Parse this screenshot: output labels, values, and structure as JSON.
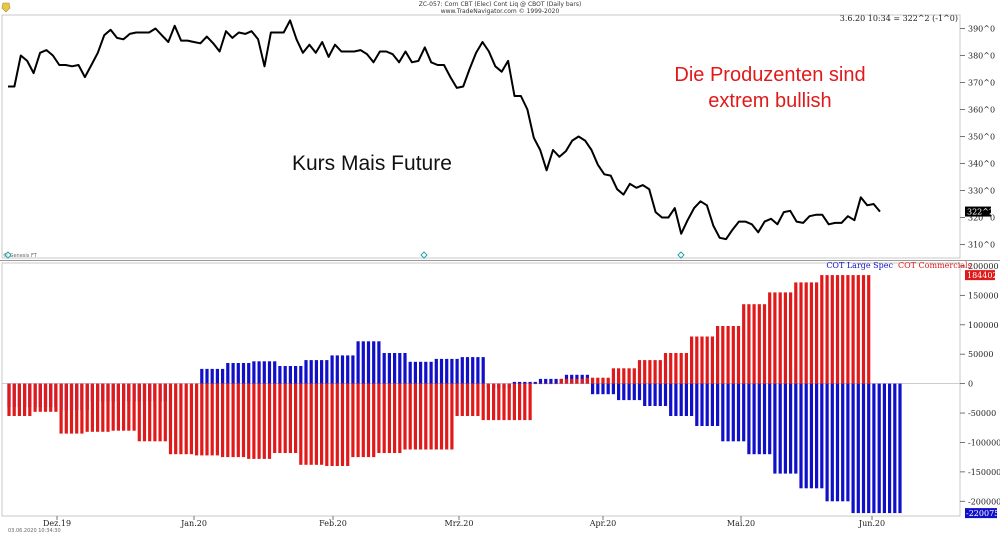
{
  "header": {
    "line1": "ZC-057: Corn CBT (Elec) Cont Liq @ CBOT  (Daily bars)",
    "line2": "www.TradeNavigator.com © 1999-2020"
  },
  "top_right_readout": "3.6.20 10:34 = 322^2 (-1^0)",
  "footer_timestamp": "03.06.2020 10:34:30",
  "watermark": "© Genesis FT",
  "chart_data": [
    {
      "type": "line",
      "annotation": "Kurs Mais Future",
      "annotation2": "Die Produzenten sind extrem bullish",
      "annotation2_lines": [
        "Die Produzenten sind",
        "extrem bullish"
      ],
      "annotation_colors": {
        "annotation": "#111111",
        "annotation2": "#e01a1a"
      },
      "ylim": [
        305,
        395
      ],
      "y_ticks": [
        310,
        320,
        330,
        340,
        350,
        360,
        370,
        380,
        390
      ],
      "y_tick_labels": [
        "310^0",
        "320^0",
        "330^0",
        "340^0",
        "350^0",
        "360^0",
        "370^0",
        "380^0",
        "390^0"
      ],
      "last_value_label": "322^2",
      "line_color": "#000000",
      "values": [
        368.5,
        368.5,
        380,
        378,
        373.5,
        381,
        382,
        380,
        376.5,
        376.5,
        376,
        376.5,
        372,
        376.5,
        381,
        387.5,
        389.5,
        386.5,
        386,
        388,
        388.5,
        388.5,
        388.5,
        390,
        387.5,
        385,
        391,
        385.5,
        385.5,
        385,
        384.5,
        387,
        384.5,
        381.5,
        389,
        386.5,
        388.5,
        388,
        389,
        386,
        376,
        388.5,
        388.5,
        388.5,
        393,
        386,
        381,
        384,
        381,
        385,
        379.5,
        384,
        381.5,
        381.5,
        381.5,
        382,
        380.5,
        377.5,
        381.5,
        381.5,
        380.5,
        377.5,
        381.5,
        377.5,
        378,
        383,
        377.5,
        376.5,
        376.5,
        372,
        368,
        368.5,
        375,
        381,
        385,
        381.5,
        376,
        374,
        378,
        365,
        365,
        360,
        349.5,
        345,
        337.5,
        345,
        342.5,
        344.5,
        348.5,
        350,
        348.5,
        345,
        339.5,
        336,
        335.5,
        330.5,
        328.5,
        332.5,
        331,
        332,
        330.5,
        322,
        320,
        320,
        323.5,
        314,
        319,
        323.5,
        326,
        324.5,
        317,
        312.5,
        312,
        315.5,
        318.5,
        318.5,
        317.5,
        314.5,
        318.5,
        319.5,
        317.5,
        322,
        322.5,
        318.5,
        318,
        320.5,
        321,
        321,
        317.5,
        318,
        318,
        320.5,
        319,
        327.5,
        324.5,
        325,
        322.2
      ]
    },
    {
      "type": "bar",
      "title": "",
      "ylim": [
        -225000,
        205000
      ],
      "y_ticks": [
        -200000,
        -150000,
        -100000,
        -50000,
        0,
        50000,
        100000,
        150000,
        200000
      ],
      "y_tick_labels": [
        "-200000",
        "-150000",
        "-100000",
        "-50000",
        "0",
        "50000",
        "100000",
        "150000",
        "200000"
      ],
      "legend_position": "top-right",
      "x_tick_labels": [
        "Dez.19",
        "Jan.20",
        "Feb.20",
        "Mrz.20",
        "Apr.20",
        "Mai.20",
        "Jun.20"
      ],
      "series": [
        {
          "name": "COT Large Spec",
          "color": "#1010c8",
          "last_value_label": "-220075",
          "values": [
            -40000,
            -40000,
            -40000,
            -40000,
            -40000,
            -40000,
            -40000,
            -40000,
            -40000,
            -40000,
            -45000,
            -45000,
            -45000,
            -45000,
            -45000,
            -45000,
            -30000,
            -30000,
            -30000,
            -30000,
            -30000,
            -30000,
            -30000,
            -30000,
            -30000,
            -30000,
            -30000,
            -30000,
            -30000,
            -30000,
            -30000,
            0,
            0,
            0,
            0,
            0,
            0,
            25000,
            25000,
            25000,
            25000,
            25000,
            35000,
            35000,
            35000,
            35000,
            35000,
            38000,
            38000,
            38000,
            38000,
            38000,
            30000,
            30000,
            30000,
            30000,
            30000,
            40000,
            40000,
            40000,
            40000,
            40000,
            48000,
            48000,
            48000,
            48000,
            48000,
            72000,
            72000,
            72000,
            72000,
            72000,
            52000,
            52000,
            52000,
            52000,
            52000,
            37000,
            37000,
            37000,
            37000,
            37000,
            42000,
            42000,
            42000,
            42000,
            42000,
            45000,
            45000,
            45000,
            45000,
            45000,
            -8000,
            -8000,
            -8000,
            -8000,
            -8000,
            3000,
            3000,
            3000,
            3000,
            3000,
            8000,
            8000,
            8000,
            8000,
            8000,
            15000,
            15000,
            15000,
            15000,
            15000,
            -18000,
            -18000,
            -18000,
            -18000,
            -18000,
            -28000,
            -28000,
            -28000,
            -28000,
            -28000,
            -38000,
            -38000,
            -38000,
            -38000,
            -38000,
            -55000,
            -55000,
            -55000,
            -55000,
            -55000,
            -72000,
            -72000,
            -72000,
            -72000,
            -72000,
            -98000,
            -98000,
            -98000,
            -98000,
            -98000,
            -120000,
            -120000,
            -120000,
            -120000,
            -120000,
            -153000,
            -153000,
            -153000,
            -153000,
            -153000,
            -178000,
            -178000,
            -178000,
            -178000,
            -178000,
            -200000,
            -200000,
            -200000,
            -200000,
            -200000,
            -220075,
            -220075,
            -220075,
            -220075,
            -220075,
            -220075,
            -220075,
            -220075,
            -220075,
            -220075
          ]
        },
        {
          "name": "COT Commercials",
          "color": "#e01a1a",
          "last_value_label": "184402",
          "values": [
            -55000,
            -55000,
            -55000,
            -55000,
            -55000,
            -48000,
            -48000,
            -48000,
            -48000,
            -48000,
            -85000,
            -85000,
            -85000,
            -85000,
            -85000,
            -82000,
            -82000,
            -82000,
            -82000,
            -82000,
            -80000,
            -80000,
            -80000,
            -80000,
            -80000,
            -98000,
            -98000,
            -98000,
            -98000,
            -98000,
            -98000,
            -120000,
            -120000,
            -120000,
            -120000,
            -120000,
            -122000,
            -122000,
            -122000,
            -122000,
            -122000,
            -125000,
            -125000,
            -125000,
            -125000,
            -125000,
            -128000,
            -128000,
            -128000,
            -128000,
            -128000,
            -118000,
            -118000,
            -118000,
            -118000,
            -118000,
            -138000,
            -138000,
            -138000,
            -138000,
            -138000,
            -140000,
            -140000,
            -140000,
            -140000,
            -140000,
            -125000,
            -125000,
            -125000,
            -125000,
            -125000,
            -118000,
            -118000,
            -118000,
            -118000,
            -118000,
            -112000,
            -112000,
            -112000,
            -112000,
            -112000,
            -112000,
            -112000,
            -112000,
            -112000,
            -112000,
            -55000,
            -55000,
            -55000,
            -55000,
            -55000,
            -62000,
            -62000,
            -62000,
            -62000,
            -62000,
            -62000,
            -62000,
            -62000,
            -62000,
            -62000,
            0,
            0,
            0,
            0,
            0,
            8000,
            8000,
            8000,
            8000,
            8000,
            10000,
            10000,
            10000,
            10000,
            10000,
            26000,
            26000,
            26000,
            26000,
            26000,
            40000,
            40000,
            40000,
            40000,
            40000,
            52000,
            52000,
            52000,
            52000,
            52000,
            80000,
            80000,
            80000,
            80000,
            80000,
            98000,
            98000,
            98000,
            98000,
            98000,
            135000,
            135000,
            135000,
            135000,
            135000,
            155000,
            155000,
            155000,
            155000,
            155000,
            172000,
            172000,
            172000,
            172000,
            172000,
            184402,
            184402,
            184402,
            184402,
            184402,
            184402,
            184402,
            184402,
            184402,
            184402
          ]
        }
      ]
    }
  ]
}
